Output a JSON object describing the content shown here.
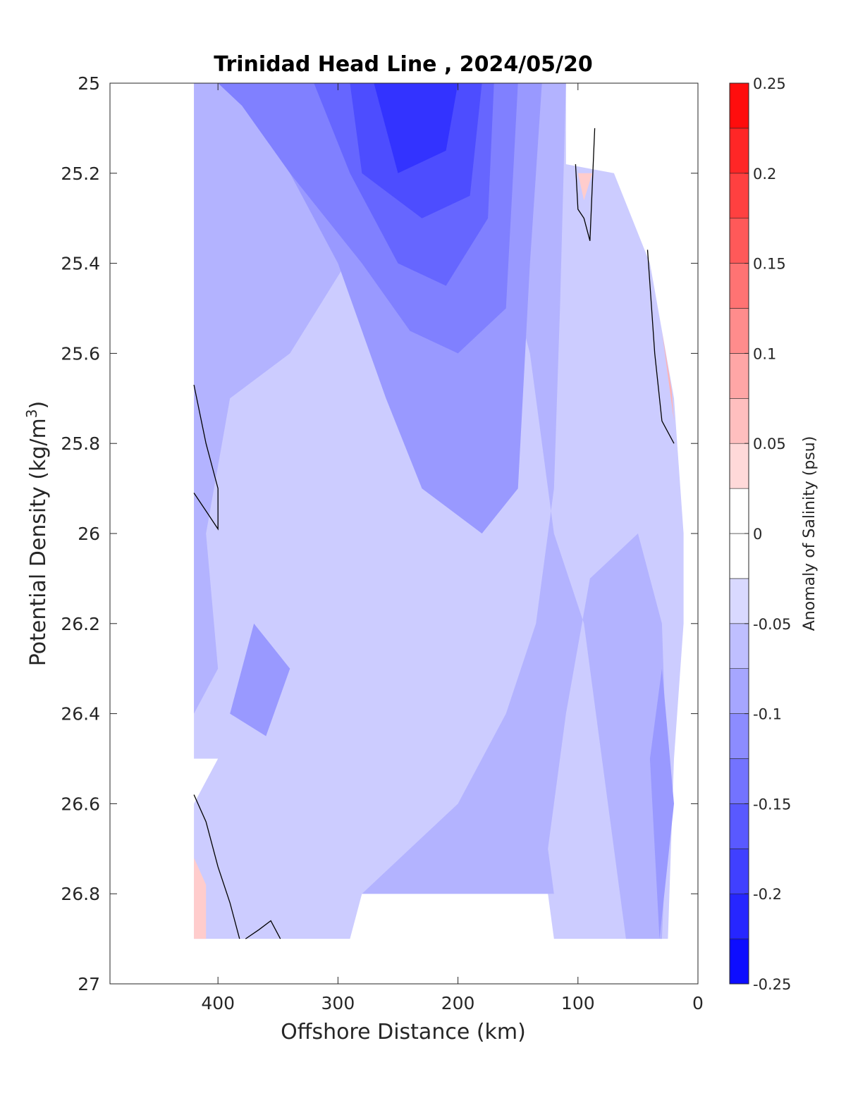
{
  "chart_data": {
    "type": "heatmap",
    "title": "Trinidad Head Line , 2024/05/20",
    "xlabel": "Offshore Distance (km)",
    "ylabel_main": "Potential Density (kg/m",
    "ylabel_sup": "3",
    "ylabel_end": ")",
    "xlim": [
      490,
      0
    ],
    "ylim": [
      25,
      27
    ],
    "x_reversed": true,
    "y_reversed": true,
    "x_ticks": [
      "400",
      "300",
      "200",
      "100",
      "0"
    ],
    "x_tick_values": [
      400,
      300,
      200,
      100,
      0
    ],
    "y_ticks": [
      "25",
      "25.2",
      "25.4",
      "25.6",
      "25.8",
      "26",
      "26.2",
      "26.4",
      "26.6",
      "26.8",
      "27"
    ],
    "y_tick_values": [
      25,
      25.2,
      25.4,
      25.6,
      25.8,
      26,
      26.2,
      26.4,
      26.6,
      26.8,
      27
    ],
    "colorbar": {
      "label": "Anomaly of Salinity (psu)",
      "range": [
        -0.25,
        0.25
      ],
      "ticks": [
        "0.25",
        "0.2",
        "0.15",
        "0.1",
        "0.05",
        "0",
        "-0.05",
        "-0.1",
        "-0.15",
        "-0.2",
        "-0.25"
      ],
      "tick_values": [
        0.25,
        0.2,
        0.15,
        0.1,
        0.05,
        0,
        -0.05,
        -0.1,
        -0.15,
        -0.2,
        -0.25
      ],
      "level_step": 0.025,
      "colormap": "blue-white-red"
    },
    "data_extent": {
      "x": [
        420,
        10
      ],
      "y": [
        25,
        26.9
      ]
    },
    "regions": [
      {
        "level": -0.05,
        "points": [
          [
            420,
            25.0
          ],
          [
            110,
            25.0
          ],
          [
            110,
            25.18
          ],
          [
            70,
            25.2
          ],
          [
            40,
            25.4
          ],
          [
            20,
            25.7
          ],
          [
            12,
            26.0
          ],
          [
            12,
            26.2
          ],
          [
            20,
            26.5
          ],
          [
            25,
            26.9
          ],
          [
            120,
            26.9
          ],
          [
            125,
            26.8
          ],
          [
            280,
            26.8
          ],
          [
            290,
            26.9
          ],
          [
            420,
            26.9
          ],
          [
            420,
            26.6
          ],
          [
            400,
            26.5
          ],
          [
            420,
            26.5
          ],
          [
            420,
            25.0
          ]
        ]
      },
      {
        "level": -0.075,
        "points": [
          [
            420,
            25.0
          ],
          [
            110,
            25.0
          ],
          [
            115,
            25.5
          ],
          [
            120,
            25.9
          ],
          [
            135,
            26.2
          ],
          [
            160,
            26.4
          ],
          [
            200,
            26.6
          ],
          [
            240,
            26.7
          ],
          [
            280,
            26.8
          ],
          [
            120,
            26.8
          ],
          [
            125,
            26.7
          ],
          [
            110,
            26.4
          ],
          [
            90,
            26.1
          ],
          [
            50,
            26.0
          ],
          [
            30,
            26.2
          ],
          [
            25,
            26.6
          ],
          [
            30,
            26.9
          ],
          [
            60,
            26.9
          ],
          [
            80,
            26.5
          ],
          [
            95,
            26.2
          ],
          [
            120,
            26.0
          ],
          [
            140,
            25.6
          ],
          [
            170,
            25.3
          ],
          [
            270,
            25.3
          ],
          [
            340,
            25.6
          ],
          [
            390,
            25.7
          ],
          [
            410,
            26.0
          ],
          [
            400,
            26.3
          ],
          [
            420,
            26.4
          ],
          [
            420,
            25.0
          ]
        ]
      },
      {
        "level": -0.1,
        "points": [
          [
            420,
            25.0
          ],
          [
            130,
            25.0
          ],
          [
            140,
            25.4
          ],
          [
            150,
            25.9
          ],
          [
            180,
            26.0
          ],
          [
            230,
            25.9
          ],
          [
            260,
            25.7
          ],
          [
            300,
            25.4
          ],
          [
            340,
            25.2
          ],
          [
            380,
            25.0
          ]
        ]
      },
      {
        "level": -0.1,
        "points": [
          [
            370,
            26.2
          ],
          [
            340,
            26.3
          ],
          [
            360,
            26.45
          ],
          [
            390,
            26.4
          ]
        ]
      },
      {
        "level": -0.1,
        "points": [
          [
            30,
            26.3
          ],
          [
            20,
            26.6
          ],
          [
            32,
            26.9
          ],
          [
            40,
            26.5
          ]
        ]
      },
      {
        "level": -0.125,
        "points": [
          [
            400,
            25.0
          ],
          [
            150,
            25.0
          ],
          [
            160,
            25.5
          ],
          [
            200,
            25.6
          ],
          [
            240,
            25.55
          ],
          [
            280,
            25.4
          ],
          [
            340,
            25.2
          ],
          [
            380,
            25.05
          ]
        ]
      },
      {
        "level": -0.15,
        "points": [
          [
            320,
            25.0
          ],
          [
            170,
            25.0
          ],
          [
            175,
            25.3
          ],
          [
            210,
            25.45
          ],
          [
            250,
            25.4
          ],
          [
            290,
            25.2
          ]
        ]
      },
      {
        "level": -0.175,
        "points": [
          [
            290,
            25.0
          ],
          [
            180,
            25.0
          ],
          [
            190,
            25.25
          ],
          [
            230,
            25.3
          ],
          [
            280,
            25.2
          ]
        ]
      },
      {
        "level": -0.2,
        "points": [
          [
            270,
            25.0
          ],
          [
            200,
            25.0
          ],
          [
            210,
            25.15
          ],
          [
            250,
            25.2
          ]
        ]
      }
    ],
    "zero_contours": [
      {
        "points": [
          [
            420,
            25.67
          ],
          [
            410,
            25.8
          ],
          [
            400,
            25.9
          ],
          [
            400,
            25.99
          ],
          [
            410,
            25.95
          ],
          [
            420,
            25.91
          ]
        ]
      },
      {
        "points": [
          [
            420,
            26.58
          ],
          [
            410,
            26.64
          ],
          [
            400,
            26.74
          ],
          [
            390,
            26.82
          ],
          [
            382,
            26.9
          ]
        ]
      },
      {
        "points": [
          [
            377,
            26.9
          ],
          [
            366,
            26.88
          ],
          [
            356,
            26.86
          ],
          [
            348,
            26.9
          ]
        ]
      },
      {
        "points": [
          [
            102,
            25.18
          ],
          [
            100,
            25.28
          ],
          [
            95,
            25.3
          ],
          [
            90,
            25.35
          ],
          [
            86,
            25.1
          ]
        ]
      },
      {
        "points": [
          [
            42,
            25.37
          ],
          [
            36,
            25.6
          ],
          [
            30,
            25.75
          ],
          [
            20,
            25.8
          ]
        ]
      }
    ],
    "positive_patches": [
      {
        "level": 0.05,
        "points": [
          [
            420,
            26.72
          ],
          [
            410,
            26.78
          ],
          [
            410,
            26.9
          ],
          [
            420,
            26.9
          ]
        ]
      },
      {
        "level": 0.05,
        "points": [
          [
            100,
            25.2
          ],
          [
            88,
            25.2
          ],
          [
            95,
            25.26
          ]
        ]
      },
      {
        "level": 0.075,
        "points": [
          [
            35,
            25.45
          ],
          [
            25,
            25.65
          ],
          [
            20,
            25.75
          ],
          [
            22,
            25.68
          ],
          [
            30,
            25.55
          ]
        ]
      }
    ]
  }
}
